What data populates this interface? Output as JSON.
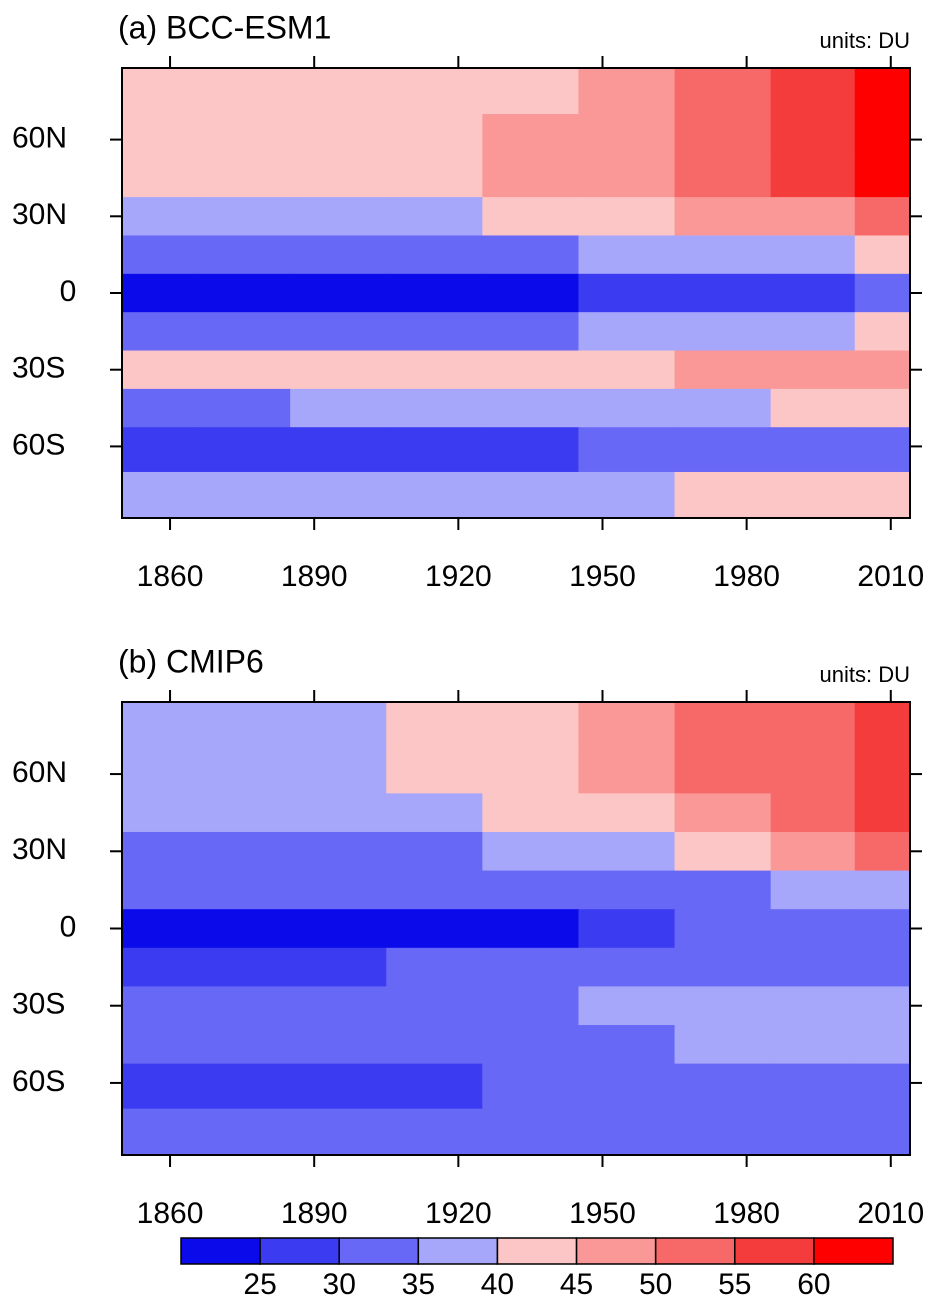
{
  "chart_data": [
    {
      "type": "contour",
      "title": "(a) BCC-ESM1",
      "units": "units: DU",
      "xlim": [
        1850,
        2014
      ],
      "ylim": [
        -88,
        88
      ],
      "xticks": [
        1860,
        1890,
        1920,
        1950,
        1980,
        2010
      ],
      "yticks": [
        {
          "value": 60,
          "label": "60N"
        },
        {
          "value": 30,
          "label": "30N"
        },
        0,
        {
          "value": -30,
          "label": "30S"
        },
        {
          "value": -60,
          "label": "60S"
        }
      ],
      "x": [
        1855,
        1875,
        1895,
        1915,
        1935,
        1955,
        1975,
        1995,
        2010
      ],
      "y": [
        80,
        60,
        45,
        30,
        15,
        0,
        -15,
        -30,
        -45,
        -60,
        -80
      ],
      "z": [
        [
          42,
          42,
          42,
          43,
          44,
          47,
          52,
          57,
          61
        ],
        [
          42,
          42,
          43,
          44,
          46,
          49,
          54,
          59,
          62
        ],
        [
          41,
          41,
          42,
          43,
          45,
          48,
          52,
          57,
          62
        ],
        [
          36,
          36,
          37,
          38,
          40,
          42,
          45,
          49,
          54
        ],
        [
          31,
          31,
          32,
          32,
          33,
          35,
          37,
          39,
          42
        ],
        [
          24,
          24,
          24,
          24,
          24,
          25,
          27,
          28,
          30
        ],
        [
          32,
          32,
          32,
          33,
          34,
          35,
          37,
          38,
          40
        ],
        [
          40,
          40,
          41,
          42,
          43,
          44,
          46,
          47,
          48
        ],
        [
          34,
          34,
          35,
          35,
          36,
          37,
          38,
          40,
          41
        ],
        [
          26,
          27,
          28,
          29,
          29,
          30,
          32,
          33,
          34
        ],
        [
          36,
          36,
          37,
          37,
          38,
          39,
          40,
          41,
          41
        ]
      ]
    },
    {
      "type": "contour",
      "title": "(b) CMIP6",
      "units": "units: DU",
      "xlim": [
        1850,
        2014
      ],
      "ylim": [
        -88,
        88
      ],
      "xticks": [
        1860,
        1890,
        1920,
        1950,
        1980,
        2010
      ],
      "yticks": [
        {
          "value": 60,
          "label": "60N"
        },
        {
          "value": 30,
          "label": "30N"
        },
        0,
        {
          "value": -30,
          "label": "30S"
        },
        {
          "value": -60,
          "label": "60S"
        }
      ],
      "x": [
        1855,
        1875,
        1895,
        1915,
        1935,
        1955,
        1975,
        1995,
        2010
      ],
      "y": [
        80,
        60,
        45,
        30,
        15,
        0,
        -15,
        -30,
        -45,
        -60,
        -80
      ],
      "z": [
        [
          37,
          37,
          38,
          40,
          42,
          46,
          51,
          54,
          56
        ],
        [
          37,
          37,
          38,
          40,
          42,
          45,
          50,
          54,
          56
        ],
        [
          36,
          36,
          37,
          38,
          40,
          43,
          48,
          52,
          56
        ],
        [
          33,
          33,
          33,
          34,
          36,
          38,
          42,
          46,
          51
        ],
        [
          31,
          31,
          31,
          31,
          32,
          33,
          34,
          36,
          38
        ],
        [
          24,
          24,
          24,
          24,
          24,
          25,
          30,
          31,
          31
        ],
        [
          29,
          29,
          29,
          30,
          30,
          31,
          32,
          33,
          34
        ],
        [
          31,
          31,
          31,
          32,
          33,
          35,
          36,
          37,
          37
        ],
        [
          32,
          32,
          32,
          32,
          32,
          33,
          35,
          35,
          36
        ],
        [
          29,
          29,
          29,
          29,
          30,
          31,
          31,
          32,
          32
        ],
        [
          31,
          31,
          31,
          31,
          32,
          33,
          33,
          33,
          33
        ]
      ]
    }
  ],
  "colorbar": {
    "levels": [
      25,
      30,
      35,
      40,
      45,
      50,
      55,
      60
    ],
    "colors": [
      "#0a0aeb",
      "#3b3bf2",
      "#6868f6",
      "#a6a6fa",
      "#fcc6c6",
      "#fa9898",
      "#f76868",
      "#f53c3c",
      "#ff0000"
    ]
  }
}
